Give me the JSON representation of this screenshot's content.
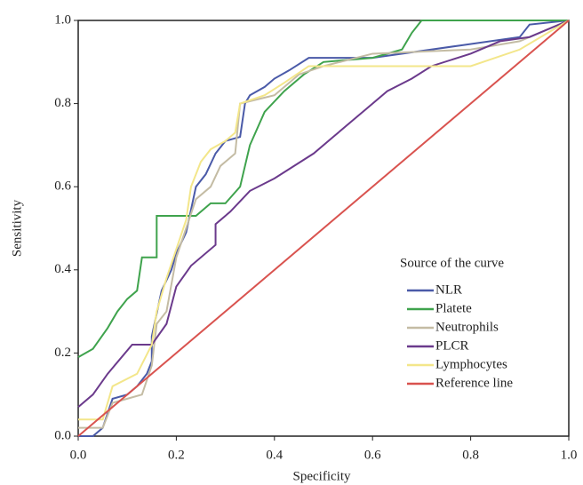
{
  "chart_data": {
    "type": "line",
    "x_label": "Specificity",
    "y_label": "Sensitivity",
    "legend_title": "Source of the curve",
    "legend": "lower right",
    "xlim": [
      0,
      1
    ],
    "ylim": [
      0,
      1
    ],
    "xticks": [
      {
        "value": 0,
        "label": "0.0"
      },
      0.2,
      0.4,
      0.6,
      0.8,
      {
        "value": 1,
        "label": "1.0"
      }
    ],
    "yticks": [
      {
        "value": 0,
        "label": "0.0"
      },
      0.2,
      0.4,
      0.6,
      0.8,
      {
        "value": 1,
        "label": "1.0"
      }
    ],
    "series": [
      {
        "name": "NLR",
        "color": "#4a5aa8",
        "x": [
          0,
          0.03,
          0.05,
          0.07,
          0.1,
          0.12,
          0.14,
          0.15,
          0.15,
          0.17,
          0.19,
          0.2,
          0.22,
          0.24,
          0.26,
          0.28,
          0.3,
          0.33,
          0.34,
          0.35,
          0.38,
          0.4,
          0.43,
          0.47,
          0.6,
          0.78,
          0.9,
          0.92,
          1
        ],
        "values": [
          0,
          0,
          0.02,
          0.09,
          0.1,
          0.12,
          0.15,
          0.18,
          0.24,
          0.35,
          0.4,
          0.44,
          0.49,
          0.6,
          0.63,
          0.68,
          0.71,
          0.72,
          0.8,
          0.82,
          0.84,
          0.86,
          0.88,
          0.91,
          0.91,
          0.94,
          0.96,
          0.99,
          1
        ]
      },
      {
        "name": "Platete",
        "color": "#3fa34d",
        "x": [
          0,
          0.03,
          0.06,
          0.08,
          0.1,
          0.12,
          0.13,
          0.16,
          0.16,
          0.24,
          0.27,
          0.3,
          0.33,
          0.35,
          0.38,
          0.42,
          0.46,
          0.5,
          0.6,
          0.66,
          0.68,
          0.7,
          1
        ],
        "values": [
          0.19,
          0.21,
          0.26,
          0.3,
          0.33,
          0.35,
          0.43,
          0.43,
          0.53,
          0.53,
          0.56,
          0.56,
          0.6,
          0.7,
          0.78,
          0.83,
          0.87,
          0.9,
          0.91,
          0.93,
          0.97,
          1,
          1
        ]
      },
      {
        "name": "Neutrophils",
        "color": "#c4bca4",
        "x": [
          0,
          0.05,
          0.07,
          0.1,
          0.13,
          0.15,
          0.16,
          0.18,
          0.2,
          0.22,
          0.24,
          0.27,
          0.29,
          0.32,
          0.33,
          0.4,
          0.45,
          0.5,
          0.6,
          0.8,
          0.9,
          1
        ],
        "values": [
          0.02,
          0.02,
          0.08,
          0.09,
          0.1,
          0.17,
          0.27,
          0.3,
          0.43,
          0.5,
          0.57,
          0.6,
          0.65,
          0.68,
          0.8,
          0.82,
          0.87,
          0.89,
          0.92,
          0.93,
          0.95,
          1
        ]
      },
      {
        "name": "PLCR",
        "color": "#6b3a8c",
        "x": [
          0,
          0.03,
          0.06,
          0.11,
          0.15,
          0.18,
          0.2,
          0.23,
          0.28,
          0.28,
          0.31,
          0.35,
          0.4,
          0.48,
          0.52,
          0.58,
          0.63,
          0.68,
          0.72,
          0.8,
          0.86,
          0.92,
          1
        ],
        "values": [
          0.07,
          0.1,
          0.15,
          0.22,
          0.22,
          0.27,
          0.36,
          0.41,
          0.46,
          0.51,
          0.54,
          0.59,
          0.62,
          0.68,
          0.72,
          0.78,
          0.83,
          0.86,
          0.89,
          0.92,
          0.95,
          0.96,
          1
        ]
      },
      {
        "name": "Lymphocytes",
        "color": "#f3e68a",
        "x": [
          0,
          0.05,
          0.07,
          0.12,
          0.15,
          0.16,
          0.18,
          0.2,
          0.22,
          0.23,
          0.25,
          0.27,
          0.3,
          0.32,
          0.33,
          0.38,
          0.42,
          0.47,
          0.6,
          0.8,
          0.9,
          1
        ],
        "values": [
          0.04,
          0.04,
          0.12,
          0.15,
          0.22,
          0.3,
          0.38,
          0.45,
          0.52,
          0.6,
          0.66,
          0.69,
          0.71,
          0.73,
          0.8,
          0.82,
          0.85,
          0.89,
          0.89,
          0.89,
          0.93,
          1
        ]
      },
      {
        "name": "Reference line",
        "color": "#d9534f",
        "x": [
          0,
          1
        ],
        "values": [
          0,
          1
        ]
      }
    ]
  }
}
